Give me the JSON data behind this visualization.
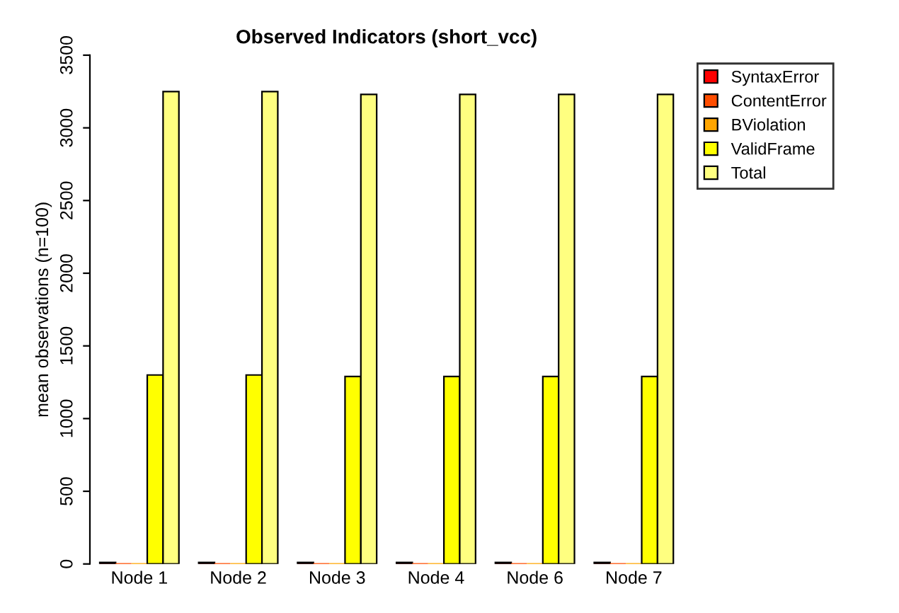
{
  "chart_data": {
    "type": "bar",
    "title": "Observed Indicators (short_vcc)",
    "ylabel": "mean observations (n=100)",
    "categories": [
      "Node 1",
      "Node 2",
      "Node 3",
      "Node 4",
      "Node 6",
      "Node 7"
    ],
    "series": [
      {
        "name": "SyntaxError",
        "color": "#ff0000",
        "values": [
          10,
          10,
          10,
          10,
          10,
          10
        ]
      },
      {
        "name": "ContentError",
        "color": "#ff4d00",
        "values": [
          0,
          0,
          0,
          0,
          0,
          0
        ]
      },
      {
        "name": "BViolation",
        "color": "#ffa500",
        "values": [
          0,
          0,
          0,
          0,
          0,
          0
        ]
      },
      {
        "name": "ValidFrame",
        "color": "#ffff00",
        "values": [
          1300,
          1300,
          1290,
          1290,
          1290,
          1290
        ]
      },
      {
        "name": "Total",
        "color": "#ffff80",
        "values": [
          3250,
          3250,
          3230,
          3230,
          3230,
          3230
        ]
      }
    ],
    "ylim": [
      0,
      3500
    ],
    "yticks": [
      0,
      500,
      1000,
      1500,
      2000,
      2500,
      3000,
      3500
    ],
    "legend": "top right",
    "grid": false
  }
}
